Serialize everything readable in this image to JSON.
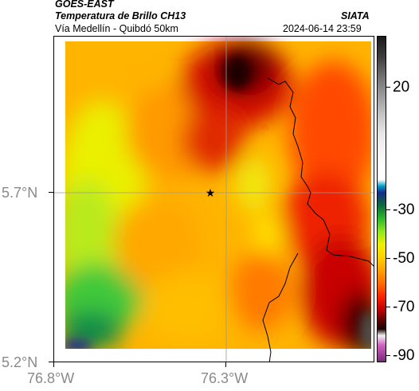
{
  "header": {
    "satellite": "GOES-EAST",
    "product": "Temperatura de Brillo CH13",
    "org": "SIATA",
    "route": "Vía Medellín - Quibdó 50km",
    "datetime": "2024-06-14 23:59"
  },
  "axes": {
    "lat_labels": [
      "5.7°N",
      "5.2°N"
    ],
    "lon_labels": [
      "76.8°W",
      "76.3°W"
    ]
  },
  "colorbar": {
    "ticks": [
      "20",
      "-30",
      "-50",
      "-70",
      "-90"
    ]
  },
  "map": {
    "marker": "star-icon",
    "colors": {
      "very_cold": "#1a0000",
      "cold": "#c00000",
      "mid": "#ff6a00",
      "warm": "#ffb000",
      "warmer": "#f5e800",
      "green": "#6fdc2a",
      "deep_green": "#0a6e3c",
      "blue": "#1a2a8a"
    }
  }
}
